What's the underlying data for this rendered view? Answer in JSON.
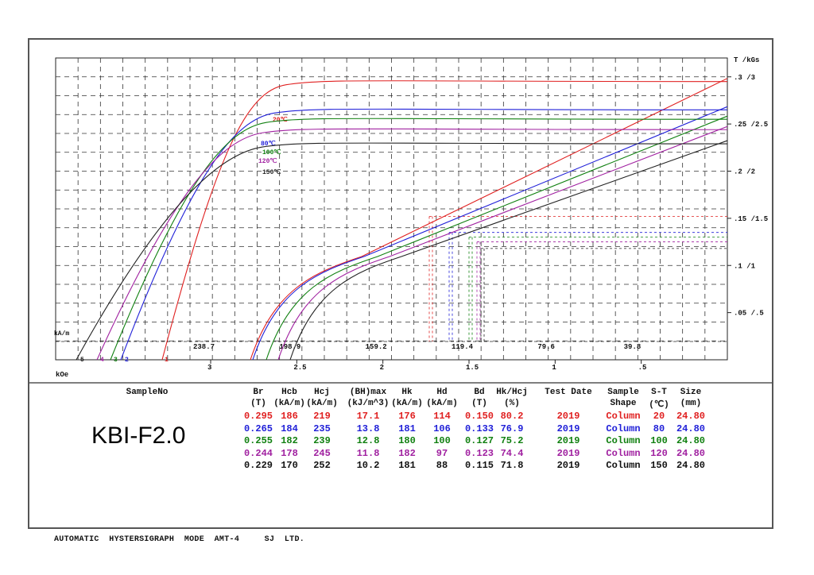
{
  "chart_data": {
    "type": "line",
    "xlabel": "kOe",
    "ylabel": "T /kGs",
    "xlim": [
      3.9,
      0
    ],
    "ylim": [
      0,
      0.32
    ],
    "grid": true,
    "kOe_ticks": [
      "3",
      "2.5",
      "2",
      "1.5",
      "1",
      ".5"
    ],
    "kAm_ticks": [
      "238.7",
      "198.9",
      "159.2",
      "119.4",
      "79.6",
      "39.8"
    ],
    "kAm_label": "kA/m",
    "y_ticks": [
      ".3 /3",
      ".25 /2.5",
      ".2 /2",
      ".15 /1.5",
      ".1 /1",
      ".05 /.5"
    ],
    "recoil_markers": [
      "5",
      "4",
      "3",
      "2",
      "1"
    ],
    "series": [
      {
        "name": "20℃",
        "color": "#e02020",
        "Br": 0.295,
        "knee_H": 2.75,
        "load_line_slope": 0.0705
      },
      {
        "name": "80℃",
        "color": "#2020d8",
        "Br": 0.265,
        "knee_H": 2.9,
        "load_line_slope": 0.0735
      },
      {
        "name": "100℃",
        "color": "#108010",
        "Br": 0.255,
        "knee_H": 3.0,
        "load_line_slope": 0.072
      },
      {
        "name": "120℃",
        "color": "#a020a0",
        "Br": 0.244,
        "knee_H": 3.1,
        "load_line_slope": 0.069
      },
      {
        "name": "150℃",
        "color": "#222222",
        "Br": 0.229,
        "knee_H": 3.25,
        "load_line_slope": 0.066
      }
    ]
  },
  "results": {
    "sample_label": "SampleNo",
    "sample_name": "KBI-F2.0",
    "headers": [
      [
        "Br",
        "(T)"
      ],
      [
        "Hcb",
        "(kA/m)"
      ],
      [
        "Hcj",
        "(kA/m)"
      ],
      [
        "(BH)max",
        "(kJ/m^3)"
      ],
      [
        "Hk",
        "(kA/m)"
      ],
      [
        "Hd",
        "(kA/m)"
      ],
      [
        "Bd",
        "(T)"
      ],
      [
        "Hk/Hcj",
        "(%)"
      ],
      [
        "Test Date",
        ""
      ],
      [
        "Sample",
        "Shape"
      ],
      [
        "S-T",
        "(℃)"
      ],
      [
        "Size",
        "(mm)"
      ]
    ],
    "rows": [
      {
        "color": "#e02020",
        "values": [
          "0.295",
          "186",
          "219",
          "17.1",
          "176",
          "114",
          "0.150",
          "80.2",
          "2019",
          "Column",
          "20",
          "24.80"
        ]
      },
      {
        "color": "#2020d8",
        "values": [
          "0.265",
          "184",
          "235",
          "13.8",
          "181",
          "106",
          "0.133",
          "76.9",
          "2019",
          "Column",
          "80",
          "24.80"
        ]
      },
      {
        "color": "#108010",
        "values": [
          "0.255",
          "182",
          "239",
          "12.8",
          "180",
          "100",
          "0.127",
          "75.2",
          "2019",
          "Column",
          "100",
          "24.80"
        ]
      },
      {
        "color": "#a020a0",
        "values": [
          "0.244",
          "178",
          "245",
          "11.8",
          "182",
          "97",
          "0.123",
          "74.4",
          "2019",
          "Column",
          "120",
          "24.80"
        ]
      },
      {
        "color": "#111111",
        "values": [
          "0.229",
          "170",
          "252",
          "10.2",
          "181",
          "88",
          "0.115",
          "71.8",
          "2019",
          "Column",
          "150",
          "24.80"
        ]
      }
    ]
  },
  "footer": "AUTOMATIC  HYSTERSIGRAPH  MODE  AMT-4     SJ  LTD."
}
